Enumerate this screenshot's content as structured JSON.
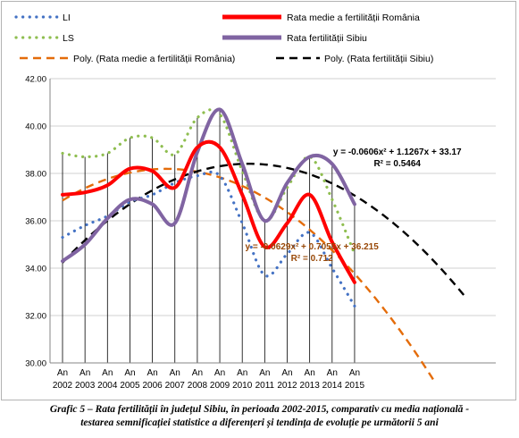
{
  "chart_data": {
    "type": "line",
    "categories": [
      "An 2002",
      "An 2003",
      "An 2004",
      "An 2005",
      "An 2006",
      "An 2007",
      "An 2008",
      "An 2009",
      "An 2010",
      "An 2011",
      "An 2012",
      "An 2013",
      "An 2014",
      "An 2015"
    ],
    "category_lines": [
      [
        "An",
        "2002"
      ],
      [
        "An",
        "2003"
      ],
      [
        "An",
        "2004"
      ],
      [
        "An",
        "2005"
      ],
      [
        "An",
        "2006"
      ],
      [
        "An",
        "2007"
      ],
      [
        "An",
        "2008"
      ],
      [
        "An",
        "2009"
      ],
      [
        "An",
        "2010"
      ],
      [
        "An",
        "2011"
      ],
      [
        "An",
        "2012"
      ],
      [
        "An",
        "2013"
      ],
      [
        "An",
        "2014"
      ],
      [
        "An",
        "2015"
      ]
    ],
    "ylim": [
      30,
      42
    ],
    "yticks": [
      "30.00",
      "32.00",
      "34.00",
      "36.00",
      "38.00",
      "40.00",
      "42.00"
    ],
    "grid": true,
    "legend_position": "top",
    "series": [
      {
        "name": "LI",
        "style": "dotted",
        "color": "#4472c4",
        "values": [
          35.3,
          35.8,
          36.2,
          36.8,
          37.1,
          37.6,
          37.9,
          37.9,
          35.9,
          33.7,
          34.6,
          35.5,
          34.0,
          32.4
        ]
      },
      {
        "name": "LS",
        "style": "dotted",
        "color": "#8fbe50",
        "values": [
          38.85,
          38.7,
          38.85,
          39.5,
          39.5,
          38.8,
          40.35,
          40.5,
          38.1,
          36.0,
          37.4,
          38.7,
          36.9,
          34.6
        ]
      },
      {
        "name": "Rata medie a fertilității România",
        "style": "solid",
        "color": "#ff0000",
        "values": [
          37.1,
          37.2,
          37.5,
          38.2,
          38.1,
          37.4,
          39.1,
          39.1,
          37.1,
          34.9,
          35.9,
          37.1,
          35.1,
          33.4
        ]
      },
      {
        "name": "Rata fertilității Sibiu",
        "style": "solid",
        "color": "#8064a2",
        "values": [
          34.3,
          35.0,
          36.1,
          36.9,
          36.7,
          35.9,
          38.9,
          40.7,
          38.4,
          36.0,
          37.6,
          38.7,
          38.4,
          36.7
        ]
      },
      {
        "name": "Poly. (Rata medie a fertilității România)",
        "style": "dashed",
        "color": "#e46c0a",
        "trend": {
          "a": -0.0629,
          "b": 0.7055,
          "c": 36.215,
          "x_end": 17.6
        }
      },
      {
        "name": "Poly. (Rata fertilității Sibiu)",
        "style": "dashed",
        "color": "#000000",
        "trend": {
          "a": -0.0606,
          "b": 1.1267,
          "c": 33.17,
          "x_end": 19
        }
      }
    ],
    "annotations": [
      {
        "series": "Poly. (Rata fertilității Sibiu)",
        "lines": [
          "y = -0.0606x² + 1.1267x + 33.17",
          "R² = 0.5464"
        ],
        "color": "#000000",
        "anchor_x": 15.9,
        "anchor_y": 38.8
      },
      {
        "series": "Poly. (Rata medie a fertilității România)",
        "lines": [
          "y = -0.0629x² + 0.7055x + 36.215",
          "R² = 0.712"
        ],
        "color": "#984807",
        "anchor_x": 12.1,
        "anchor_y": 34.8
      }
    ]
  },
  "caption": {
    "line1": "Grafic 5 – Rata fertilității în județul Sibiu, în perioada 2002-2015, comparativ cu media națională -",
    "line2": "testarea semnificației statistice a diferențeri și tendința de evoluție pe următorii 5 ani"
  }
}
